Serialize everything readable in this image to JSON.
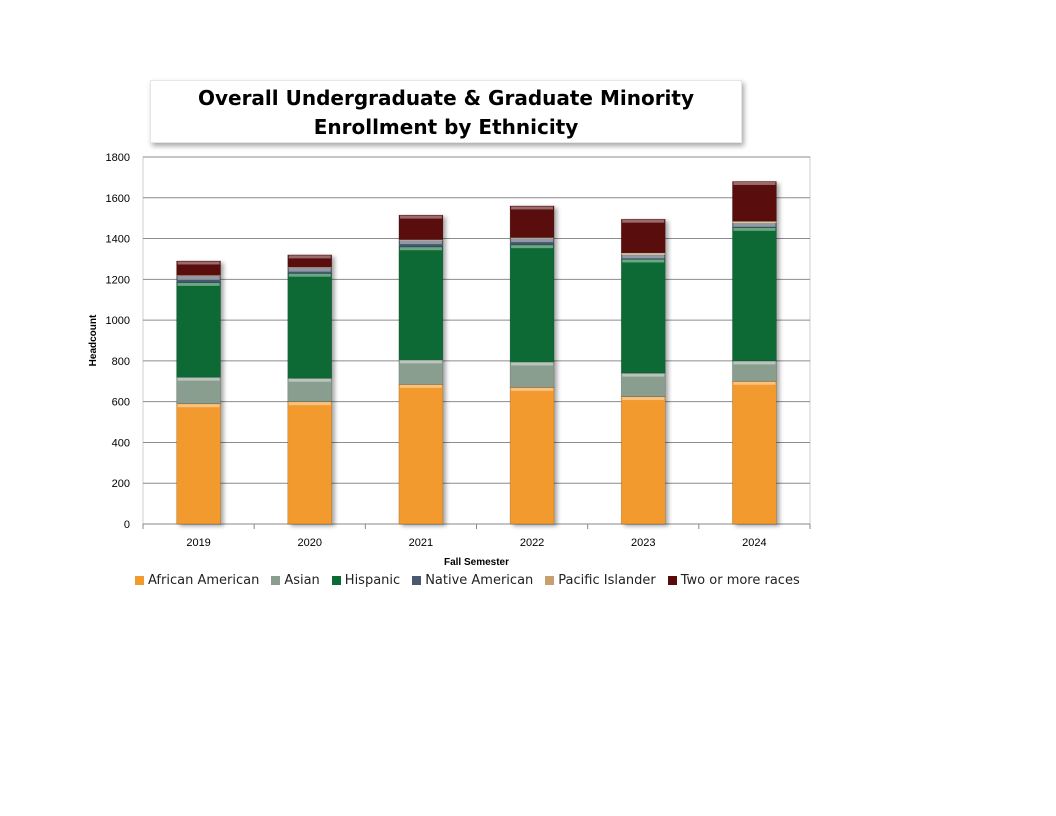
{
  "chart_data": {
    "type": "bar",
    "stacked": true,
    "title": "Overall Undergraduate & Graduate Minority Enrollment by Ethnicity",
    "xlabel": "Fall Semester",
    "ylabel": "Headcount",
    "ylim": [
      0,
      1800
    ],
    "yticks": [
      0,
      200,
      400,
      600,
      800,
      1000,
      1200,
      1400,
      1600,
      1800
    ],
    "categories": [
      "2019",
      "2020",
      "2021",
      "2022",
      "2023",
      "2024"
    ],
    "series": [
      {
        "name": "African American",
        "color": "#f39a2e",
        "values": [
          590,
          600,
          685,
          670,
          625,
          700
        ]
      },
      {
        "name": "Asian",
        "color": "#8a9e90",
        "values": [
          130,
          115,
          120,
          125,
          115,
          100
        ]
      },
      {
        "name": "Hispanic",
        "color": "#0a6b35",
        "values": [
          465,
          515,
          555,
          575,
          560,
          655
        ]
      },
      {
        "name": "Native American",
        "color": "#4a5870",
        "values": [
          30,
          25,
          30,
          30,
          20,
          20
        ]
      },
      {
        "name": "Pacific Islander",
        "color": "#c8a070",
        "values": [
          5,
          5,
          5,
          5,
          10,
          10
        ]
      },
      {
        "name": "Two or more races",
        "color": "#5a0a0a",
        "values": [
          70,
          60,
          120,
          155,
          165,
          195
        ]
      }
    ],
    "grid": true,
    "legend": "bottom"
  }
}
